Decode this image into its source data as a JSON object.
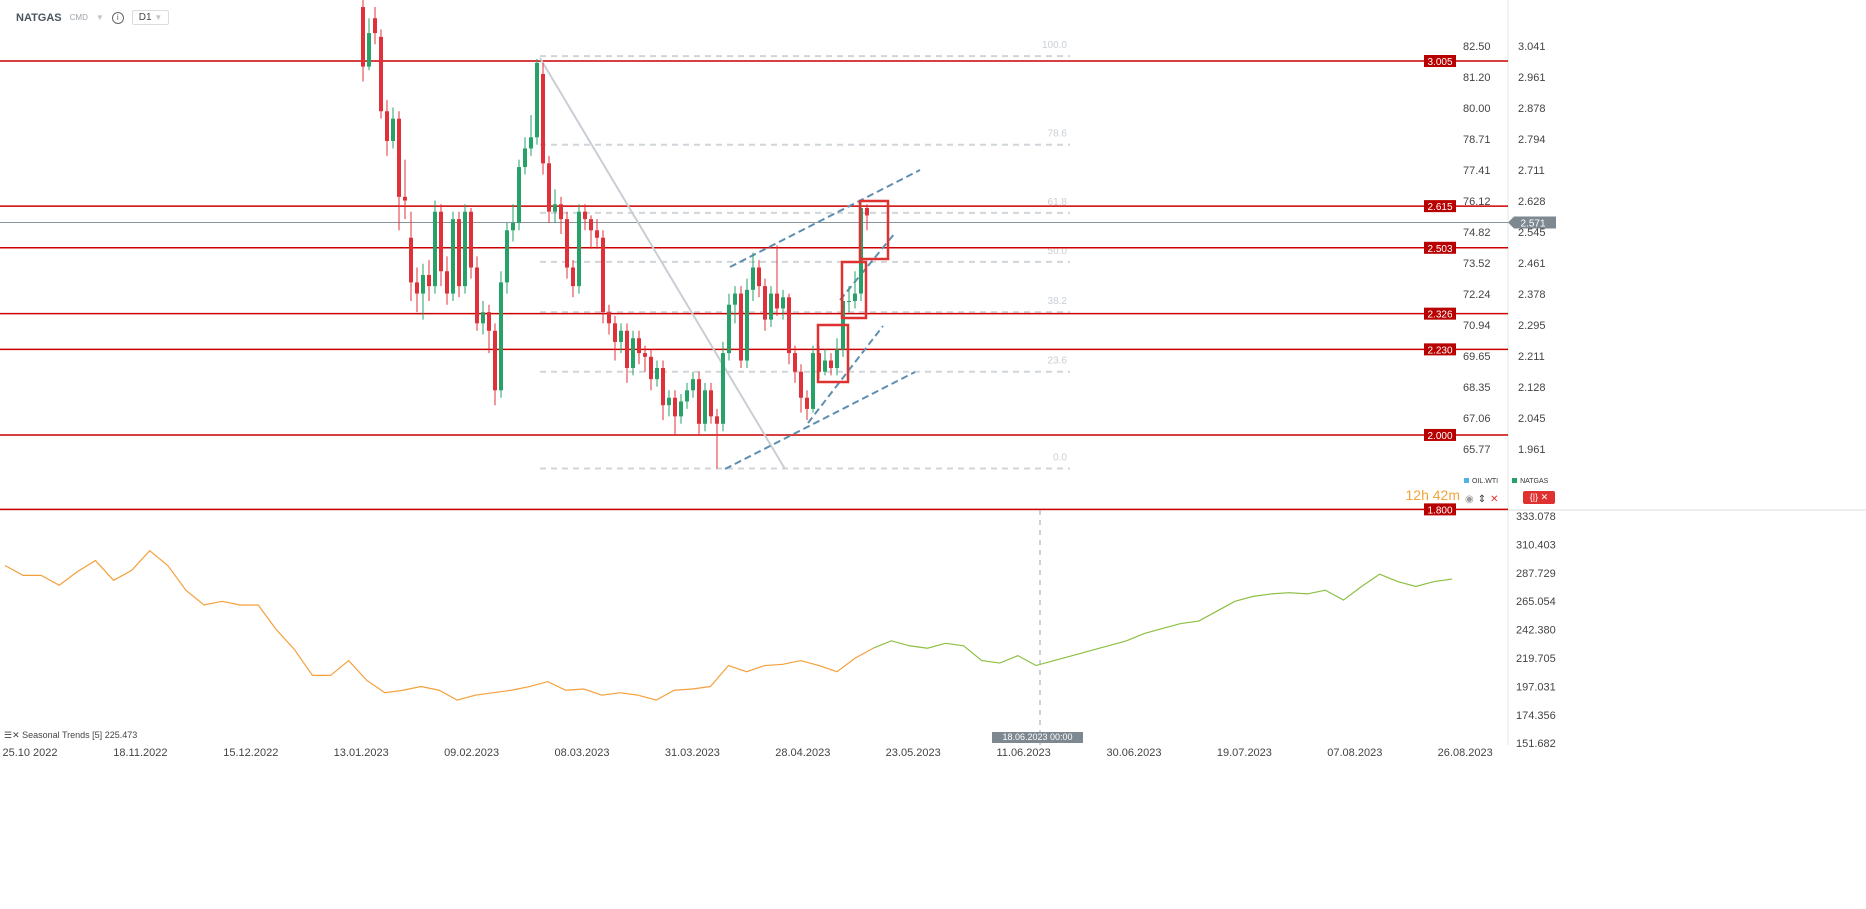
{
  "header": {
    "symbol": "NATGAS",
    "type": "CMD",
    "timeframe": "D1",
    "info_icon": "info-icon"
  },
  "colors": {
    "up": "#26a269",
    "down": "#e0303a",
    "level": "#cc0000",
    "fib": "#d0d5da",
    "channel": "#5f8fb0",
    "seasonal_past": "#f5a03c",
    "seasonal_future": "#8cc043",
    "current": "#8a949c"
  },
  "chart_data": [
    {
      "type": "candlestick",
      "title": "NATGAS",
      "right_axis_ticks": [
        "3.041",
        "2.961",
        "2.878",
        "2.794",
        "2.711",
        "2.628",
        "2.545",
        "2.461",
        "2.378",
        "2.295",
        "2.211",
        "2.128",
        "2.045",
        "1.961"
      ],
      "left_axis_ticks": [
        "82.50",
        "81.20",
        "80.00",
        "78.71",
        "77.41",
        "76.12",
        "74.82",
        "73.52",
        "72.24",
        "70.94",
        "69.65",
        "68.35",
        "67.06",
        "65.77"
      ],
      "current_price": "2.571",
      "levels": [
        "3.005",
        "2.615",
        "2.503",
        "2.326",
        "2.230",
        "2.000",
        "1.800"
      ],
      "fib_levels": [
        "100.0",
        "78.6",
        "61.8",
        "50.0",
        "38.2",
        "23.6",
        "0.0"
      ],
      "fib_prices": [
        3.018,
        2.78,
        2.597,
        2.465,
        2.33,
        2.17,
        1.91
      ],
      "candles": [
        [
          3.15,
          3.18,
          2.95,
          2.99
        ],
        [
          2.99,
          3.12,
          2.98,
          3.08
        ],
        [
          3.12,
          3.15,
          3.05,
          3.08
        ],
        [
          3.07,
          3.09,
          2.85,
          2.87
        ],
        [
          2.87,
          2.9,
          2.75,
          2.79
        ],
        [
          2.79,
          2.88,
          2.77,
          2.85
        ],
        [
          2.85,
          2.87,
          2.55,
          2.64
        ],
        [
          2.64,
          2.74,
          2.58,
          2.63
        ],
        [
          2.53,
          2.6,
          2.36,
          2.41
        ],
        [
          2.41,
          2.45,
          2.33,
          2.38
        ],
        [
          2.38,
          2.46,
          2.31,
          2.43
        ],
        [
          2.43,
          2.47,
          2.36,
          2.4
        ],
        [
          2.4,
          2.63,
          2.38,
          2.6
        ],
        [
          2.6,
          2.62,
          2.4,
          2.44
        ],
        [
          2.44,
          2.48,
          2.35,
          2.38
        ],
        [
          2.38,
          2.6,
          2.36,
          2.58
        ],
        [
          2.58,
          2.6,
          2.37,
          2.4
        ],
        [
          2.4,
          2.62,
          2.38,
          2.6
        ],
        [
          2.6,
          2.61,
          2.42,
          2.45
        ],
        [
          2.45,
          2.48,
          2.28,
          2.3
        ],
        [
          2.3,
          2.36,
          2.27,
          2.33
        ],
        [
          2.33,
          2.35,
          2.22,
          2.28
        ],
        [
          2.28,
          2.3,
          2.08,
          2.12
        ],
        [
          2.12,
          2.44,
          2.1,
          2.41
        ],
        [
          2.41,
          2.57,
          2.38,
          2.55
        ],
        [
          2.55,
          2.62,
          2.52,
          2.57
        ],
        [
          2.57,
          2.74,
          2.55,
          2.72
        ],
        [
          2.72,
          2.8,
          2.7,
          2.77
        ],
        [
          2.77,
          2.86,
          2.75,
          2.8
        ],
        [
          2.8,
          3.01,
          2.78,
          3.0
        ],
        [
          2.97,
          3.0,
          2.7,
          2.73
        ],
        [
          2.73,
          2.75,
          2.57,
          2.6
        ],
        [
          2.6,
          2.66,
          2.57,
          2.62
        ],
        [
          2.62,
          2.64,
          2.54,
          2.58
        ],
        [
          2.58,
          2.6,
          2.42,
          2.45
        ],
        [
          2.45,
          2.47,
          2.37,
          2.4
        ],
        [
          2.4,
          2.62,
          2.38,
          2.6
        ],
        [
          2.6,
          2.62,
          2.55,
          2.58
        ],
        [
          2.58,
          2.59,
          2.5,
          2.55
        ],
        [
          2.55,
          2.58,
          2.5,
          2.53
        ],
        [
          2.53,
          2.55,
          2.3,
          2.33
        ],
        [
          2.33,
          2.35,
          2.27,
          2.3
        ],
        [
          2.3,
          2.32,
          2.2,
          2.25
        ],
        [
          2.25,
          2.3,
          2.22,
          2.28
        ],
        [
          2.28,
          2.3,
          2.14,
          2.18
        ],
        [
          2.18,
          2.28,
          2.16,
          2.26
        ],
        [
          2.26,
          2.28,
          2.19,
          2.22
        ],
        [
          2.22,
          2.24,
          2.17,
          2.21
        ],
        [
          2.21,
          2.23,
          2.12,
          2.15
        ],
        [
          2.15,
          2.2,
          2.13,
          2.18
        ],
        [
          2.18,
          2.2,
          2.04,
          2.08
        ],
        [
          2.08,
          2.12,
          2.05,
          2.1
        ],
        [
          2.1,
          2.12,
          2.0,
          2.05
        ],
        [
          2.05,
          2.11,
          2.03,
          2.09
        ],
        [
          2.09,
          2.14,
          2.07,
          2.12
        ],
        [
          2.12,
          2.17,
          2.1,
          2.15
        ],
        [
          2.15,
          2.17,
          2.0,
          2.03
        ],
        [
          2.03,
          2.14,
          2.01,
          2.12
        ],
        [
          2.12,
          2.14,
          2.03,
          2.05
        ],
        [
          2.05,
          2.07,
          1.91,
          2.03
        ],
        [
          2.03,
          2.25,
          2.01,
          2.22
        ],
        [
          2.22,
          2.38,
          2.2,
          2.35
        ],
        [
          2.35,
          2.4,
          2.3,
          2.38
        ],
        [
          2.38,
          2.4,
          2.18,
          2.2
        ],
        [
          2.2,
          2.42,
          2.18,
          2.39
        ],
        [
          2.39,
          2.49,
          2.36,
          2.45
        ],
        [
          2.45,
          2.47,
          2.37,
          2.4
        ],
        [
          2.4,
          2.42,
          2.28,
          2.31
        ],
        [
          2.31,
          2.4,
          2.29,
          2.38
        ],
        [
          2.38,
          2.51,
          2.32,
          2.34
        ],
        [
          2.34,
          2.39,
          2.31,
          2.37
        ],
        [
          2.37,
          2.38,
          2.19,
          2.22
        ],
        [
          2.22,
          2.24,
          2.14,
          2.17
        ],
        [
          2.17,
          2.19,
          2.06,
          2.1
        ],
        [
          2.1,
          2.12,
          2.04,
          2.07
        ],
        [
          2.07,
          2.24,
          2.06,
          2.22
        ],
        [
          2.22,
          2.24,
          2.15,
          2.17
        ],
        [
          2.17,
          2.23,
          2.16,
          2.2
        ],
        [
          2.2,
          2.22,
          2.16,
          2.18
        ],
        [
          2.18,
          2.26,
          2.16,
          2.23
        ],
        [
          2.23,
          2.38,
          2.21,
          2.36
        ],
        [
          2.36,
          2.4,
          2.33,
          2.36
        ],
        [
          2.36,
          2.44,
          2.34,
          2.38
        ],
        [
          2.38,
          2.63,
          2.36,
          2.61
        ],
        [
          2.61,
          2.62,
          2.55,
          2.59
        ]
      ]
    },
    {
      "type": "line",
      "title": "Seasonal Trends [5]",
      "value_label": "225.473",
      "y_axis_ticks": [
        "333.078",
        "310.403",
        "287.729",
        "265.054",
        "242.380",
        "219.705",
        "197.031",
        "174.356",
        "151.682"
      ],
      "x_axis_ticks": [
        "25.10 2022",
        "18.11.2022",
        "15.12.2022",
        "13.01.2023",
        "09.02.2023",
        "08.03.2023",
        "31.03.2023",
        "28.04.2023",
        "23.05.2023",
        "11.06.2023",
        "30.06.2023",
        "19.07.2023",
        "07.08.2023",
        "26.08.2023"
      ],
      "crosshair_label": "18.06.2023 00:00",
      "series": [
        {
          "values": [
            293,
            285,
            285,
            277,
            288,
            297,
            281,
            289,
            305,
            293,
            273,
            261,
            264,
            261,
            261,
            241,
            225,
            204,
            204,
            216,
            200,
            190,
            192,
            195,
            192,
            184,
            188,
            190,
            192,
            195,
            199,
            192,
            193,
            188,
            190,
            188,
            184,
            192,
            193,
            195,
            212,
            207,
            212,
            213,
            216,
            212,
            207,
            218,
            226
          ]
        },
        {
          "values": [
            226,
            232,
            228,
            226,
            230,
            228,
            216,
            214,
            220,
            212,
            216,
            220,
            224,
            228,
            232,
            238,
            242,
            246,
            248,
            256,
            264,
            268,
            270,
            271,
            270,
            273,
            265,
            276,
            286,
            280,
            276,
            280,
            282
          ]
        }
      ]
    }
  ],
  "legend": {
    "items": [
      {
        "label": "OIL.WTI",
        "color": "#4fb3e8"
      },
      {
        "label": "NATGAS",
        "color": "#26a269"
      }
    ]
  },
  "countdown": {
    "hours": "12h",
    "minutes": "42m"
  },
  "controls": {
    "eye": "eye-icon",
    "updown": "up-down-arrows-icon",
    "close": "close-icon",
    "btn": "{|}  ✕"
  }
}
